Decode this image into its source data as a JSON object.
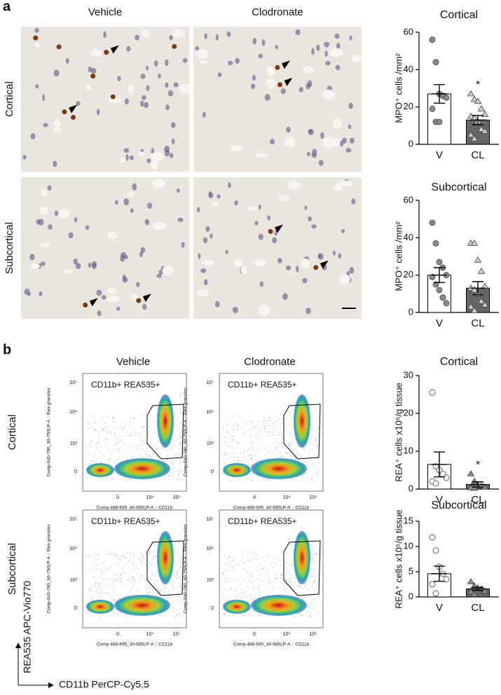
{
  "panel_a": {
    "label": "a",
    "columns": [
      "Vehicle",
      "Clodronate"
    ],
    "rows": [
      "Cortical",
      "Subcortical"
    ]
  },
  "panel_b": {
    "label": "b",
    "columns": [
      "Vehicle",
      "Clodronate"
    ],
    "rows": [
      "Cortical",
      "Subcortical"
    ],
    "gate_label": "CD11b+ REA535+",
    "x_axis_label": "Comp-488-695_40-685LP-A :: CD11b",
    "y_axis_label": "Comp-640-780_60-750LP-A :: Rea granulos",
    "x_tick_labels": [
      "0",
      "10⁴",
      "10⁵"
    ],
    "y_tick_labels": [
      "0",
      "10³",
      "10⁴",
      "10⁵"
    ],
    "y_marker": "REA535 APC-Vio770",
    "x_marker": "CD11b PerCP-Cy5.5"
  },
  "chart_data": [
    {
      "type": "bar",
      "title": "Cortical",
      "y_label": "MPO⁺ cells /mm²",
      "categories": [
        "V",
        "CL"
      ],
      "values": [
        27,
        13
      ],
      "errors": [
        5,
        2.5
      ],
      "bar_colors": [
        "#ffffff",
        "#666666"
      ],
      "points": [
        [
          56,
          44,
          27,
          26,
          25,
          19,
          12,
          12
        ],
        [
          27,
          24,
          23,
          19,
          16,
          15,
          14,
          12,
          8,
          7,
          5,
          3
        ]
      ],
      "point_colors": [
        "#8a8a8a",
        "#d0d0d0"
      ],
      "ylim": [
        0,
        60
      ],
      "yticks": [
        0,
        20,
        40,
        60
      ],
      "annotation": "*"
    },
    {
      "type": "bar",
      "title": "Subcortical",
      "y_label": "MPO⁺ cells /mm²",
      "categories": [
        "V",
        "CL"
      ],
      "values": [
        20,
        13
      ],
      "errors": [
        4,
        3.5
      ],
      "bar_colors": [
        "#ffffff",
        "#666666"
      ],
      "points": [
        [
          48,
          37,
          27,
          24,
          20,
          19,
          15,
          12,
          8,
          5
        ],
        [
          37,
          37,
          28,
          22,
          14,
          13,
          12,
          10,
          6,
          4,
          3,
          1
        ]
      ],
      "point_colors": [
        "#8a8a8a",
        "#d0d0d0"
      ],
      "ylim": [
        0,
        60
      ],
      "yticks": [
        0,
        20,
        40,
        60
      ]
    },
    {
      "type": "bar",
      "title": "Cortical",
      "y_label": "REA⁺ cells x10⁵/g tissue",
      "categories": [
        "V",
        "CL"
      ],
      "values": [
        6.5,
        1.2
      ],
      "errors": [
        3.3,
        0.7
      ],
      "bar_colors": [
        "#ffffff",
        "#666666"
      ],
      "points": [
        [
          25.5,
          6,
          5,
          4,
          3,
          2,
          1.5
        ],
        [
          4,
          2,
          1,
          0.8,
          0.5,
          0.3,
          0.2
        ]
      ],
      "point_colors": [
        "#ffffff",
        "#8a8a8a"
      ],
      "ylim": [
        0,
        30
      ],
      "yticks": [
        0,
        10,
        20,
        30
      ],
      "annotation": "*"
    },
    {
      "type": "bar",
      "title": "Subcortical",
      "y_label": "REA⁺ cells x10⁵/g tissue",
      "categories": [
        "V",
        "CL"
      ],
      "values": [
        4.6,
        1.6
      ],
      "errors": [
        1.5,
        0.3
      ],
      "bar_colors": [
        "#ffffff",
        "#666666"
      ],
      "points": [
        [
          11.8,
          9.2,
          6,
          4.6,
          3.5,
          2.5,
          0.7
        ],
        [
          3,
          2.2,
          1.8,
          1.6,
          1.1,
          1,
          0.5
        ]
      ],
      "point_colors": [
        "#ffffff",
        "#8a8a8a"
      ],
      "ylim": [
        0,
        15
      ],
      "yticks": [
        0,
        5,
        10,
        15
      ]
    }
  ]
}
